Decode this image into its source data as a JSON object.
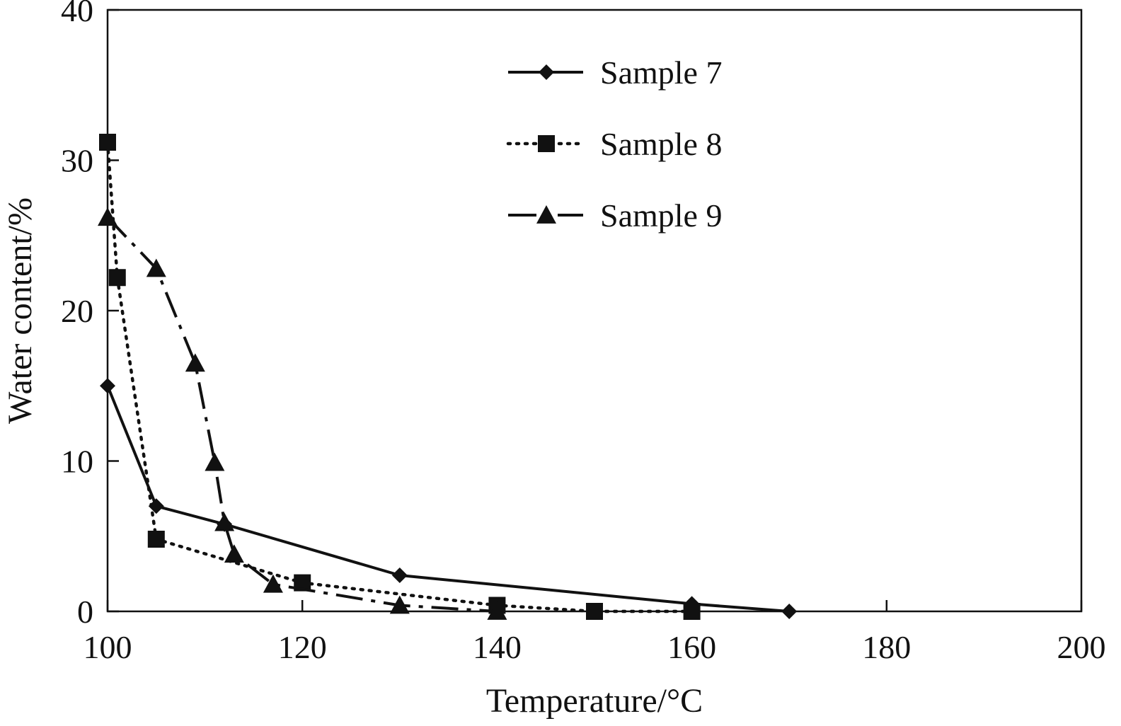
{
  "chart_data": {
    "type": "line",
    "title": "",
    "xlabel": "Temperature/°C",
    "ylabel": "Water content/%",
    "xlim": [
      100,
      200
    ],
    "ylim": [
      0,
      40
    ],
    "xticks": [
      "100",
      "120",
      "140",
      "160",
      "180",
      "200"
    ],
    "yticks": [
      "0",
      "10",
      "20",
      "30",
      "40"
    ],
    "grid": false,
    "legend_position": "top-center",
    "series": [
      {
        "name": "Sample 7",
        "marker": "diamond",
        "line_style": "solid",
        "color": "#111111",
        "points": [
          [
            100,
            15
          ],
          [
            105,
            7
          ],
          [
            112,
            5.8
          ],
          [
            130,
            2.4
          ],
          [
            160,
            0.5
          ],
          [
            170,
            0
          ]
        ]
      },
      {
        "name": "Sample 8",
        "marker": "square",
        "line_style": "dotted",
        "color": "#111111",
        "points": [
          [
            100,
            31.2
          ],
          [
            101,
            22.2
          ],
          [
            105,
            4.8
          ],
          [
            120,
            1.9
          ],
          [
            140,
            0.4
          ],
          [
            150,
            0
          ],
          [
            160,
            0
          ]
        ]
      },
      {
        "name": "Sample 9",
        "marker": "triangle",
        "line_style": "dashdot",
        "color": "#111111",
        "points": [
          [
            100,
            26.2
          ],
          [
            105,
            22.8
          ],
          [
            109,
            16.5
          ],
          [
            111,
            9.9
          ],
          [
            112,
            5.9
          ],
          [
            113,
            3.8
          ],
          [
            117,
            1.8
          ],
          [
            130,
            0.4
          ],
          [
            140,
            0
          ]
        ]
      }
    ]
  }
}
